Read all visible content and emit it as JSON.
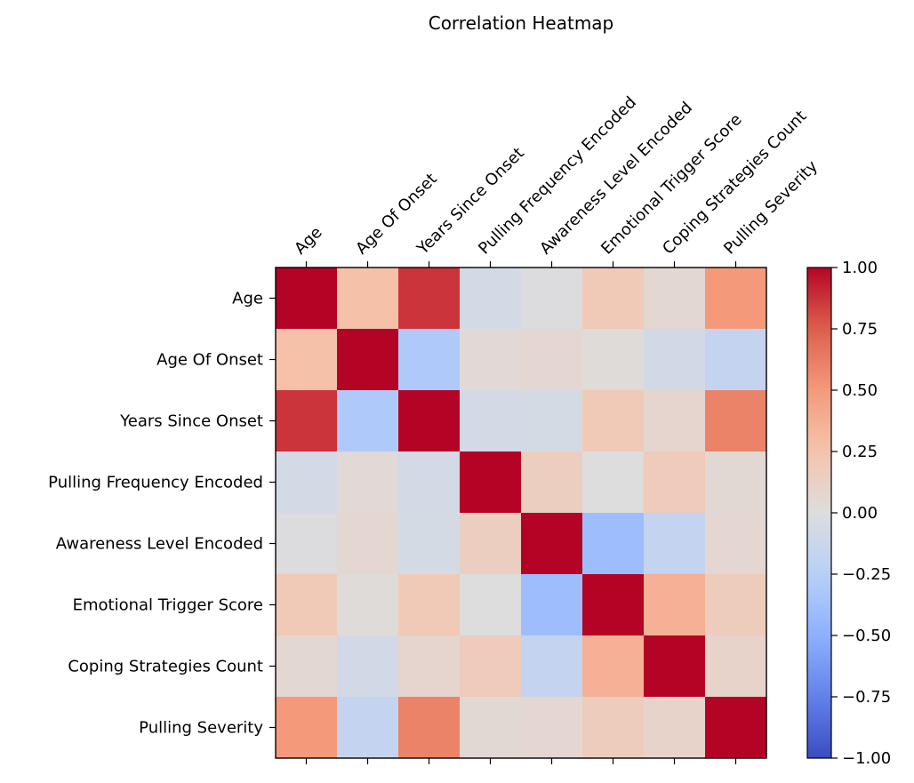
{
  "chart_data": {
    "type": "heatmap",
    "title": "Correlation Heatmap",
    "row_labels": [
      "Age",
      "Age Of Onset",
      "Years Since Onset",
      "Pulling Frequency Encoded",
      "Awareness Level Encoded",
      "Emotional Trigger Score",
      "Coping Strategies Count",
      "Pulling Severity"
    ],
    "col_labels": [
      "Age",
      "Age Of Onset",
      "Years Since Onset",
      "Pulling Frequency Encoded",
      "Awareness Level Encoded",
      "Emotional Trigger Score",
      "Coping Strategies Count",
      "Pulling Severity"
    ],
    "values": [
      [
        1.0,
        0.27,
        0.87,
        -0.07,
        -0.01,
        0.2,
        0.06,
        0.5
      ],
      [
        0.27,
        1.0,
        -0.3,
        0.04,
        0.07,
        0.02,
        -0.08,
        -0.17
      ],
      [
        0.87,
        -0.3,
        1.0,
        -0.07,
        -0.06,
        0.2,
        0.08,
        0.6
      ],
      [
        -0.07,
        0.04,
        -0.07,
        1.0,
        0.15,
        0.0,
        0.18,
        0.05
      ],
      [
        -0.01,
        0.07,
        -0.06,
        0.15,
        1.0,
        -0.4,
        -0.17,
        0.07
      ],
      [
        0.2,
        0.02,
        0.2,
        0.0,
        -0.4,
        1.0,
        0.37,
        0.17
      ],
      [
        0.06,
        -0.08,
        0.08,
        0.18,
        -0.17,
        0.37,
        1.0,
        0.1
      ],
      [
        0.5,
        -0.17,
        0.6,
        0.05,
        0.07,
        0.17,
        0.1,
        1.0
      ]
    ],
    "colormap": "coolwarm",
    "vmin": -1.0,
    "vmax": 1.0,
    "colorbar_ticks": [
      "−1.00",
      "−0.75",
      "−0.50",
      "−0.25",
      "0.00",
      "0.25",
      "0.50",
      "0.75",
      "1.00"
    ],
    "colorbar_tick_values": [
      -1.0,
      -0.75,
      -0.5,
      -0.25,
      0.0,
      0.25,
      0.5,
      0.75,
      1.0
    ],
    "x_tick_position": "top",
    "x_tick_rotation_deg": 45,
    "grid": false,
    "colors": {
      "low": "#3b4cc0",
      "mid": "#dddddd",
      "high": "#b40426"
    }
  }
}
